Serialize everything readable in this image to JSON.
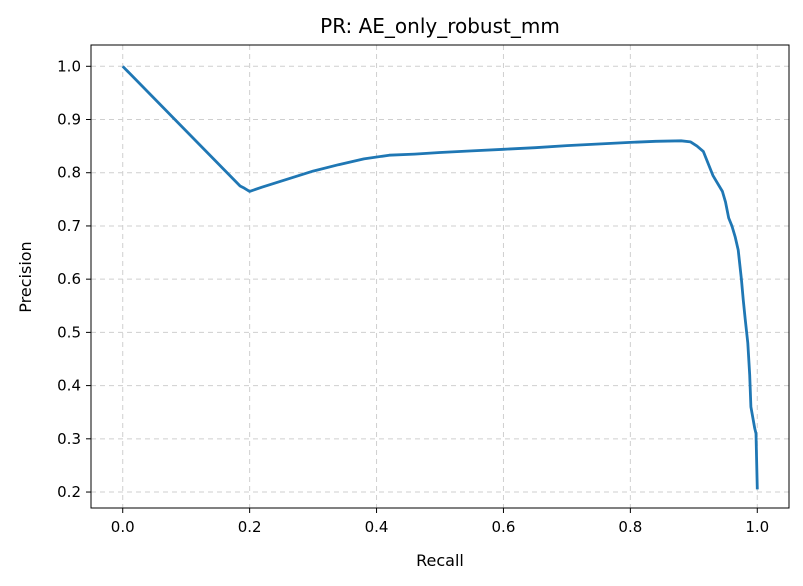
{
  "chart_data": {
    "type": "line",
    "title": "PR: AE_only_robust_mm",
    "xlabel": "Recall",
    "ylabel": "Precision",
    "xlim": [
      -0.05,
      1.05
    ],
    "ylim": [
      0.17,
      1.04
    ],
    "xticks": [
      0.0,
      0.2,
      0.4,
      0.6,
      0.8,
      1.0
    ],
    "xtick_labels": [
      "0.0",
      "0.2",
      "0.4",
      "0.6",
      "0.8",
      "1.0"
    ],
    "yticks": [
      0.2,
      0.3,
      0.4,
      0.5,
      0.6,
      0.7,
      0.8,
      0.9,
      1.0
    ],
    "ytick_labels": [
      "0.2",
      "0.3",
      "0.4",
      "0.5",
      "0.6",
      "0.7",
      "0.8",
      "0.9",
      "1.0"
    ],
    "grid": true,
    "series": [
      {
        "color": "#1f77b4",
        "x": [
          0.0,
          0.185,
          0.19,
          0.2,
          0.22,
          0.26,
          0.3,
          0.34,
          0.38,
          0.42,
          0.46,
          0.5,
          0.55,
          0.6,
          0.65,
          0.7,
          0.75,
          0.8,
          0.84,
          0.88,
          0.895,
          0.905,
          0.915,
          0.92,
          0.93,
          0.935,
          0.945,
          0.95,
          0.955,
          0.96,
          0.965,
          0.97,
          0.975,
          0.978,
          0.981,
          0.985,
          0.988,
          0.99,
          0.993,
          0.996,
          0.998,
          1.0,
          1.0
        ],
        "y": [
          1.0,
          0.775,
          0.772,
          0.765,
          0.773,
          0.788,
          0.803,
          0.815,
          0.826,
          0.833,
          0.835,
          0.838,
          0.841,
          0.844,
          0.847,
          0.851,
          0.854,
          0.857,
          0.859,
          0.86,
          0.858,
          0.85,
          0.84,
          0.825,
          0.795,
          0.785,
          0.765,
          0.745,
          0.715,
          0.7,
          0.68,
          0.655,
          0.6,
          0.56,
          0.525,
          0.48,
          0.42,
          0.36,
          0.34,
          0.32,
          0.31,
          0.205,
          0.205
        ]
      }
    ]
  }
}
